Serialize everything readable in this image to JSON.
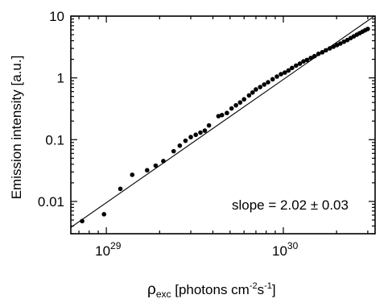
{
  "chart_data": {
    "type": "scatter",
    "xlabel": {
      "main": "ρ",
      "sub": "exc",
      "rest": " [photons cm",
      "sup1": "-2",
      "mid": "s",
      "sup2": "-1",
      "end": "]"
    },
    "ylabel": "Emission intensity [a.u.]",
    "xscale": "log",
    "yscale": "log",
    "xlim": [
      6.3e+28,
      3.3e+30
    ],
    "ylim": [
      0.003,
      10
    ],
    "x_ticks": [
      {
        "value": 1e+29,
        "base": "10",
        "exp": "29"
      },
      {
        "value": 1e+30,
        "base": "10",
        "exp": "30"
      }
    ],
    "y_ticks": [
      {
        "value": 10,
        "label": "10"
      },
      {
        "value": 1,
        "label": "1"
      },
      {
        "value": 0.1,
        "label": "0.1"
      },
      {
        "value": 0.01,
        "label": "0.01"
      }
    ],
    "grid": false,
    "annotation": "slope = 2.02 ± 0.03",
    "fit_line": {
      "slope": 2.02,
      "x": [
        6.3e+28,
        3.3e+30
      ],
      "y": [
        0.0038,
        10.2
      ]
    },
    "series": [
      {
        "x": [
          7.3e+28,
          9.7e+28,
          1.2e+29,
          1.4e+29,
          1.7e+29,
          1.9e+29,
          2.1e+29,
          2.4e+29,
          2.6e+29,
          2.8e+29,
          3e+29,
          3.2e+29,
          3.4e+29,
          3.6e+29,
          3.8e+29,
          4.3e+29,
          4.5e+29,
          4.8e+29,
          5.1e+29,
          5.4e+29,
          5.7e+29,
          6e+29,
          6.4e+29,
          6.7e+29,
          7e+29,
          7.4e+29,
          7.8e+29,
          8.2e+29,
          8.7e+29,
          9.2e+29,
          9.7e+29,
          1.02e+30,
          1.07e+30,
          1.12e+30,
          1.18e+30,
          1.24e+30,
          1.3e+30,
          1.36e+30,
          1.43e+30,
          1.5e+30,
          1.58e+30,
          1.66e+30,
          1.74e+30,
          1.83e+30,
          1.92e+30,
          2.01e+30,
          2.1e+30,
          2.2e+30,
          2.3e+30,
          2.4e+30,
          2.5e+30,
          2.6e+30,
          2.7e+30,
          2.8e+30,
          2.9e+30,
          3e+30
        ],
        "y": [
          0.0048,
          0.0062,
          0.016,
          0.027,
          0.032,
          0.038,
          0.045,
          0.065,
          0.08,
          0.096,
          0.11,
          0.12,
          0.13,
          0.14,
          0.17,
          0.24,
          0.25,
          0.27,
          0.32,
          0.36,
          0.4,
          0.45,
          0.52,
          0.58,
          0.65,
          0.71,
          0.78,
          0.85,
          0.95,
          1.05,
          1.15,
          1.22,
          1.32,
          1.45,
          1.58,
          1.7,
          1.85,
          1.95,
          2.1,
          2.25,
          2.45,
          2.6,
          2.8,
          3.0,
          3.2,
          3.4,
          3.6,
          3.85,
          4.1,
          4.4,
          4.7,
          5.0,
          5.3,
          5.6,
          5.9,
          6.2
        ]
      }
    ]
  }
}
